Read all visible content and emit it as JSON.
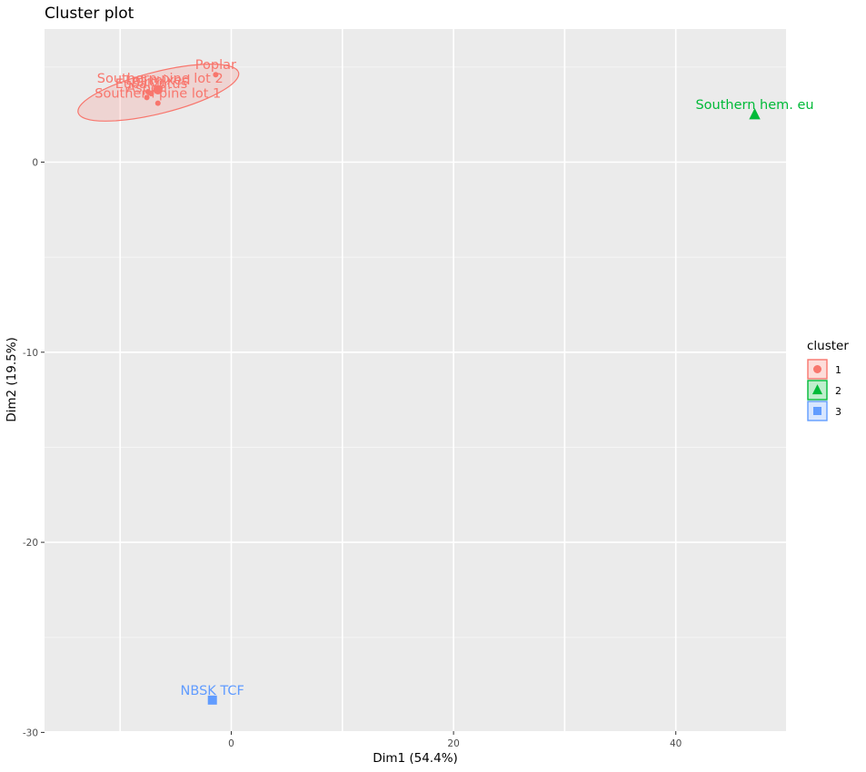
{
  "chart_data": {
    "type": "scatter",
    "title": "Cluster plot",
    "xlabel": "Dim1 (54.4%)",
    "ylabel": "Dim2 (19.5%)",
    "xlim": [
      -17,
      50
    ],
    "ylim": [
      -30,
      7
    ],
    "x_ticks": [
      0,
      20,
      40
    ],
    "y_ticks": [
      0,
      -10,
      -20,
      -30
    ],
    "grid": true,
    "legend": {
      "title": "cluster",
      "position": "right"
    },
    "colors": {
      "1": "#F8766D",
      "2": "#00BA38",
      "3": "#619CFF"
    },
    "shapes": {
      "1": "circle",
      "2": "triangle",
      "3": "square"
    },
    "points": [
      {
        "label": "Poplar",
        "x": -1.4,
        "y": 4.6,
        "cluster": "1"
      },
      {
        "label": "Southern pine lot 2",
        "x": -6.4,
        "y": 3.9,
        "cluster": "1"
      },
      {
        "label": "Eucalyptus",
        "x": -7.2,
        "y": 3.6,
        "cluster": "1"
      },
      {
        "label": "Lot mixed",
        "x": -6.6,
        "y": 3.8,
        "cluster": "1"
      },
      {
        "label": "Birch",
        "x": -7.5,
        "y": 3.7,
        "cluster": "1"
      },
      {
        "label": "Southern pine lot 1",
        "x": -6.6,
        "y": 3.1,
        "cluster": "1"
      },
      {
        "label": "Aspen",
        "x": -7.6,
        "y": 3.4,
        "cluster": "1"
      },
      {
        "label": "Southern hem. eu",
        "x": 47.1,
        "y": 2.5,
        "cluster": "2"
      },
      {
        "label": "NBSK TCF",
        "x": -1.7,
        "y": -28.3,
        "cluster": "3"
      }
    ],
    "clusters": [
      {
        "name": "1",
        "centroid": {
          "x": -6.6,
          "y": 3.8
        }
      },
      {
        "name": "2",
        "centroid": {
          "x": 47.1,
          "y": 2.5
        }
      },
      {
        "name": "3",
        "centroid": {
          "x": -1.7,
          "y": -28.3
        }
      }
    ]
  }
}
